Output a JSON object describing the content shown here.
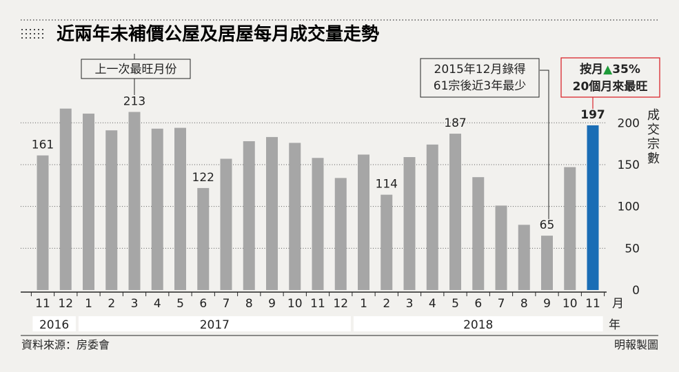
{
  "title": "近兩年未補價公屋及居屋每月成交量走勢",
  "chart_data": {
    "type": "bar",
    "categories": [
      "11",
      "12",
      "1",
      "2",
      "3",
      "4",
      "5",
      "6",
      "7",
      "8",
      "9",
      "10",
      "11",
      "12",
      "1",
      "2",
      "3",
      "4",
      "5",
      "6",
      "7",
      "8",
      "9",
      "10",
      "11"
    ],
    "years": [
      {
        "label": "2016",
        "from": 0,
        "to": 1
      },
      {
        "label": "2017",
        "from": 2,
        "to": 13
      },
      {
        "label": "2018",
        "from": 14,
        "to": 24
      }
    ],
    "values": [
      161,
      217,
      211,
      191,
      213,
      193,
      194,
      122,
      157,
      178,
      183,
      176,
      158,
      134,
      162,
      114,
      159,
      174,
      187,
      135,
      101,
      78,
      65,
      147,
      197
    ],
    "data_labels": {
      "0": "161",
      "4": "213",
      "7": "122",
      "15": "114",
      "18": "187",
      "22": "65",
      "24": "197"
    },
    "highlight_index": 24,
    "ylim": [
      0,
      220
    ],
    "yticks": [
      "0",
      "50",
      "100",
      "150",
      "200"
    ],
    "ylabel": "成交宗數",
    "xunit": "月",
    "year_unit": "年",
    "colors": {
      "bar": "#a6a6a6",
      "highlight": "#1a6db5",
      "accent": "#d9252b",
      "grid": "#555555"
    }
  },
  "annotations": {
    "peak_note": "上一次最旺月份",
    "low_note_line1": "2015年12月錄得",
    "low_note_line2": "61宗後近3年最少",
    "latest_line1_prefix": "按月",
    "latest_arrow": "▲",
    "latest_line1_value": "35%",
    "latest_line2": "20個月來最旺"
  },
  "source": "資料來源：房委會",
  "credit": "明報製圖"
}
